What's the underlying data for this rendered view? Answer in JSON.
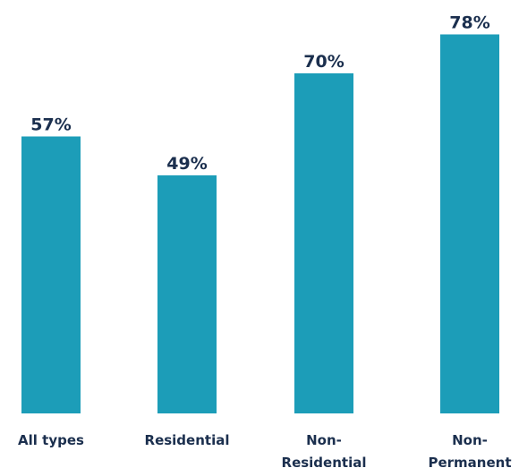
{
  "chart_data": {
    "type": "bar",
    "title": "",
    "xlabel": "",
    "ylabel": "",
    "categories": [
      "All types",
      "Residential",
      "Non-Residential",
      "Non-Permanent"
    ],
    "category_lines": [
      [
        "All types"
      ],
      [
        "Residential"
      ],
      [
        "Non-",
        "Residential"
      ],
      [
        "Non-",
        "Permanent"
      ]
    ],
    "values": [
      57,
      49,
      70,
      78
    ],
    "value_labels": [
      "57%",
      "49%",
      "70%",
      "78%"
    ],
    "unit": "%",
    "ylim": [
      0,
      100
    ],
    "grid": false,
    "legend": "none",
    "colors": {
      "bar": "#1c9db8",
      "text": "#1b2f4e"
    }
  }
}
